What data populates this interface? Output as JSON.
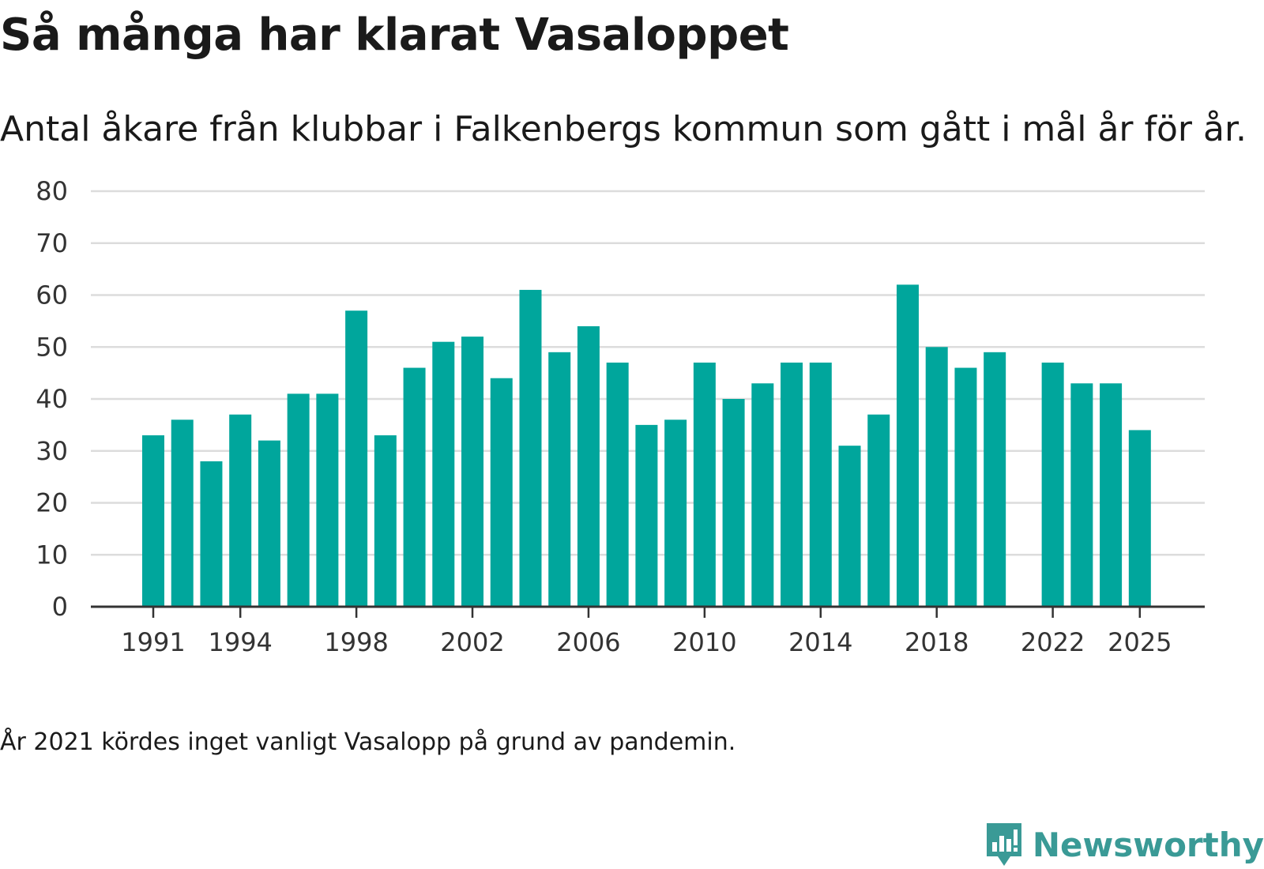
{
  "title": "Så många har klarat Vasaloppet",
  "subtitle": "Antal åkare från klubbar i Falkenbergs kommun som gått i mål år för år.",
  "note": "År 2021 kördes inget vanligt Vasalopp på grund av pandemin.",
  "brand": "Newsworthy",
  "colors": {
    "bar": "#00a69c",
    "grid": "#dcdcdc",
    "axis": "#333333",
    "text": "#333333",
    "brand": "#3a9a96"
  },
  "chart_data": {
    "type": "bar",
    "title": "Så många har klarat Vasaloppet",
    "xlabel": "",
    "ylabel": "",
    "ylim": [
      0,
      80
    ],
    "yticks": [
      0,
      10,
      20,
      30,
      40,
      50,
      60,
      70,
      80
    ],
    "xtick_labels": [
      "1991",
      "1994",
      "1998",
      "2002",
      "2006",
      "2010",
      "2014",
      "2018",
      "2022",
      "2025"
    ],
    "categories": [
      "1991",
      "1992",
      "1993",
      "1994",
      "1995",
      "1996",
      "1997",
      "1998",
      "1999",
      "2000",
      "2001",
      "2002",
      "2003",
      "2004",
      "2005",
      "2006",
      "2007",
      "2008",
      "2009",
      "2010",
      "2011",
      "2012",
      "2013",
      "2014",
      "2015",
      "2016",
      "2017",
      "2018",
      "2019",
      "2020",
      "2021",
      "2022",
      "2023",
      "2024",
      "2025"
    ],
    "values": [
      33,
      36,
      28,
      37,
      32,
      41,
      41,
      57,
      33,
      46,
      51,
      52,
      44,
      61,
      49,
      54,
      47,
      35,
      36,
      47,
      40,
      43,
      47,
      47,
      31,
      37,
      62,
      50,
      46,
      49,
      null,
      47,
      43,
      43,
      34
    ]
  }
}
